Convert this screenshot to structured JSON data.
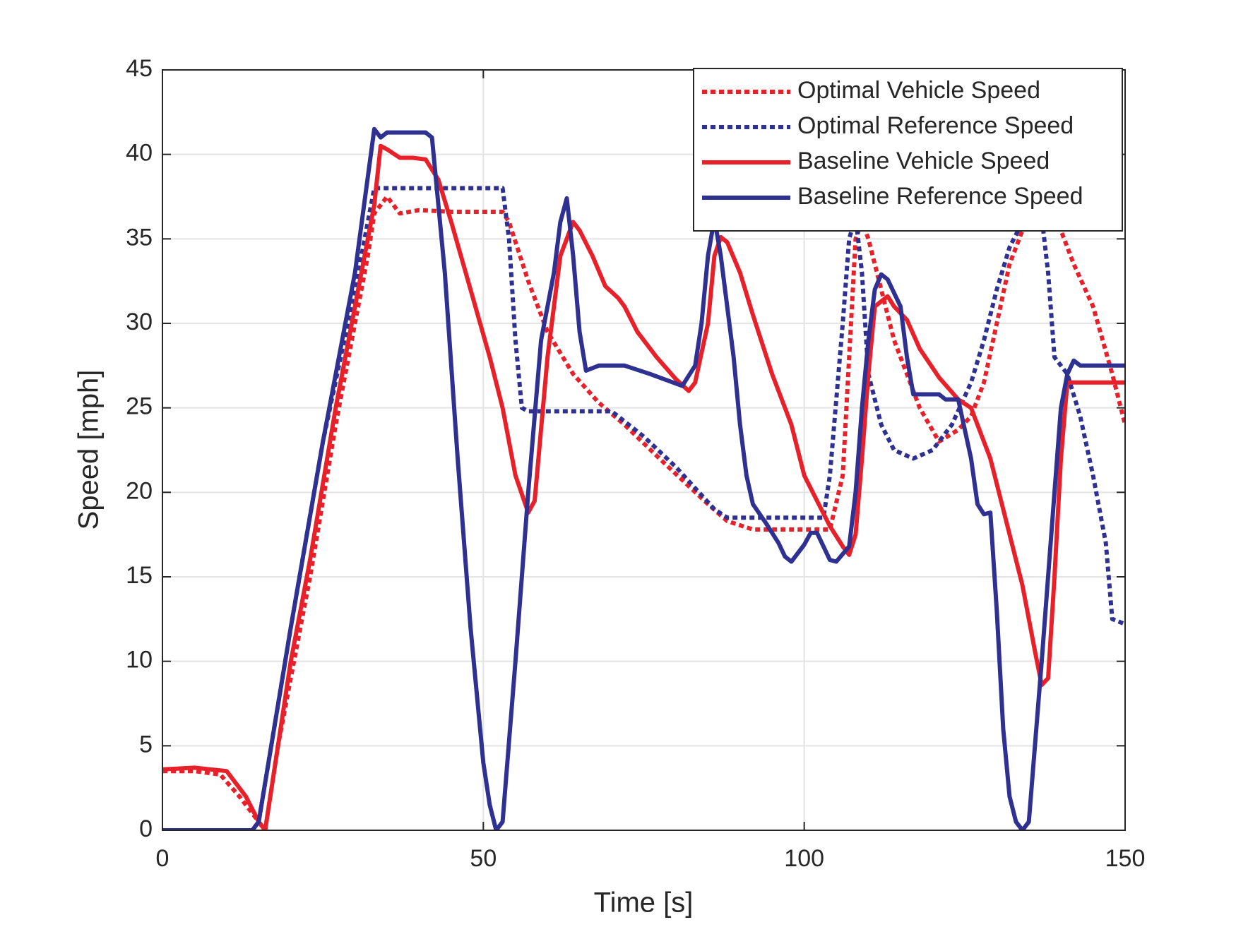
{
  "chart_data": {
    "type": "line",
    "xlabel": "Time [s]",
    "ylabel": "Speed [mph]",
    "xlim": [
      0,
      150
    ],
    "ylim": [
      0,
      45
    ],
    "xticks": [
      0,
      50,
      100,
      150
    ],
    "yticks": [
      0,
      5,
      10,
      15,
      20,
      25,
      30,
      35,
      40,
      45
    ],
    "grid": true,
    "legend": "upper right",
    "series": [
      {
        "name": "Optimal Vehicle Speed",
        "color": "#e8202a",
        "dash": "dotted",
        "x": [
          0,
          5,
          9,
          12,
          15,
          16,
          18,
          20,
          23,
          27,
          30,
          32,
          33,
          35,
          37,
          40,
          45,
          53,
          54,
          57,
          60,
          64,
          68,
          72,
          78,
          85,
          88,
          92,
          104,
          106,
          107,
          108,
          109,
          110,
          112,
          114,
          118,
          121,
          124,
          126,
          128,
          130,
          132,
          134,
          136,
          138,
          140,
          142,
          145,
          148,
          150
        ],
        "values": [
          3.5,
          3.5,
          3.3,
          2,
          0.5,
          0,
          5,
          9,
          15,
          24,
          30,
          34,
          36.5,
          37.5,
          36.5,
          36.7,
          36.6,
          36.6,
          36,
          32.5,
          29.5,
          27,
          25.3,
          24,
          21.8,
          19.3,
          18.3,
          17.8,
          17.8,
          21,
          28,
          35,
          36,
          35,
          32,
          29,
          25,
          23,
          23.7,
          24.5,
          26.5,
          30,
          33.5,
          35.5,
          36.3,
          36.3,
          35.5,
          33.5,
          31,
          27,
          24
        ]
      },
      {
        "name": "Optimal Reference Speed",
        "color": "#2e3192",
        "dash": "dotted",
        "x": [
          0,
          14,
          15,
          20,
          25,
          30,
          32,
          33,
          53,
          54,
          55,
          56,
          57,
          70,
          75,
          80,
          86,
          88,
          103,
          104,
          106,
          107,
          108,
          109,
          110,
          112,
          114,
          117,
          120,
          123,
          126,
          128,
          130,
          132,
          134,
          135,
          137,
          138,
          139,
          141,
          143,
          145,
          147,
          148,
          150
        ],
        "values": [
          0,
          0,
          0.5,
          12,
          23,
          32,
          36,
          38,
          38,
          35,
          29,
          25,
          24.8,
          24.8,
          23.3,
          21.5,
          19,
          18.5,
          18.5,
          21,
          30,
          35,
          36.3,
          33,
          27,
          24,
          22.5,
          22,
          22.5,
          24,
          26.5,
          29,
          32,
          34.5,
          36,
          36.5,
          36.3,
          33,
          28,
          27,
          24.5,
          21,
          17,
          12.5,
          12.2
        ]
      },
      {
        "name": "Baseline Vehicle Speed",
        "color": "#e8202a",
        "dash": "solid",
        "x": [
          0,
          5,
          10,
          13,
          15,
          16,
          18,
          20,
          23,
          27,
          30,
          32,
          33,
          34,
          35,
          37,
          39,
          41,
          43,
          45,
          48,
          51,
          53,
          55,
          57,
          58,
          60,
          62,
          64,
          65,
          67,
          69,
          71,
          72,
          74,
          77,
          80,
          82,
          83,
          85,
          86,
          87,
          88,
          90,
          92,
          95,
          98,
          100,
          102,
          104,
          106,
          107,
          108,
          109,
          110,
          111,
          112,
          113,
          114,
          116,
          118,
          121,
          124,
          126,
          129,
          131,
          134,
          136,
          137,
          138,
          139,
          140,
          141,
          143,
          150
        ],
        "values": [
          3.6,
          3.7,
          3.5,
          2,
          0.5,
          0,
          5,
          10,
          16,
          25,
          31,
          35,
          37,
          40.5,
          40.3,
          39.8,
          39.8,
          39.7,
          38.5,
          36,
          32,
          28,
          25,
          21,
          18.8,
          19.5,
          28,
          34,
          36,
          35.5,
          34,
          32.2,
          31.5,
          31,
          29.5,
          28,
          26.7,
          26,
          26.5,
          30,
          34,
          35.1,
          34.8,
          33,
          30.5,
          27,
          24,
          21,
          19.5,
          18,
          16.8,
          16.3,
          17.5,
          22,
          27,
          31,
          31.3,
          31.6,
          31,
          30.2,
          28.5,
          26.8,
          25.5,
          25,
          22,
          19,
          14.5,
          10.5,
          8.6,
          9,
          15,
          22,
          26.5,
          26.5,
          26.5
        ]
      },
      {
        "name": "Baseline Reference Speed",
        "color": "#2e3192",
        "dash": "solid",
        "x": [
          0,
          14,
          15,
          20,
          25,
          30,
          33,
          34,
          35,
          41,
          42,
          44,
          46,
          48,
          50,
          51,
          52,
          53,
          55,
          57,
          59,
          61,
          62,
          63,
          64,
          65,
          66,
          68,
          72,
          76,
          81,
          83,
          84,
          85,
          86,
          87,
          89,
          90,
          91,
          92,
          94,
          96,
          97,
          98,
          100,
          101,
          102,
          103,
          104,
          105,
          107,
          108,
          109,
          110,
          111,
          112,
          113,
          115,
          116,
          117,
          121,
          122,
          124,
          126,
          127,
          128,
          129,
          130,
          131,
          132,
          133,
          134,
          135,
          137,
          139,
          140,
          141,
          142,
          143,
          150
        ],
        "values": [
          0,
          0,
          0.5,
          12,
          23,
          33,
          41.5,
          41,
          41.3,
          41.3,
          41,
          33,
          22,
          12,
          4,
          1.5,
          0,
          0.5,
          10,
          20,
          29,
          33,
          36,
          37.4,
          34,
          29.5,
          27.2,
          27.5,
          27.5,
          27,
          26.3,
          27.5,
          30,
          34,
          36.2,
          34,
          28,
          24,
          21,
          19.3,
          18.2,
          17,
          16.2,
          15.9,
          16.9,
          17.6,
          17.6,
          16.8,
          16,
          15.9,
          16.8,
          20,
          25,
          29,
          32,
          32.9,
          32.6,
          31,
          28,
          25.8,
          25.8,
          25.5,
          25.5,
          22,
          19.3,
          18.7,
          18.8,
          13,
          6,
          2,
          0.5,
          0,
          0.5,
          10,
          20,
          25,
          27,
          27.8,
          27.5,
          27.5
        ]
      }
    ]
  }
}
